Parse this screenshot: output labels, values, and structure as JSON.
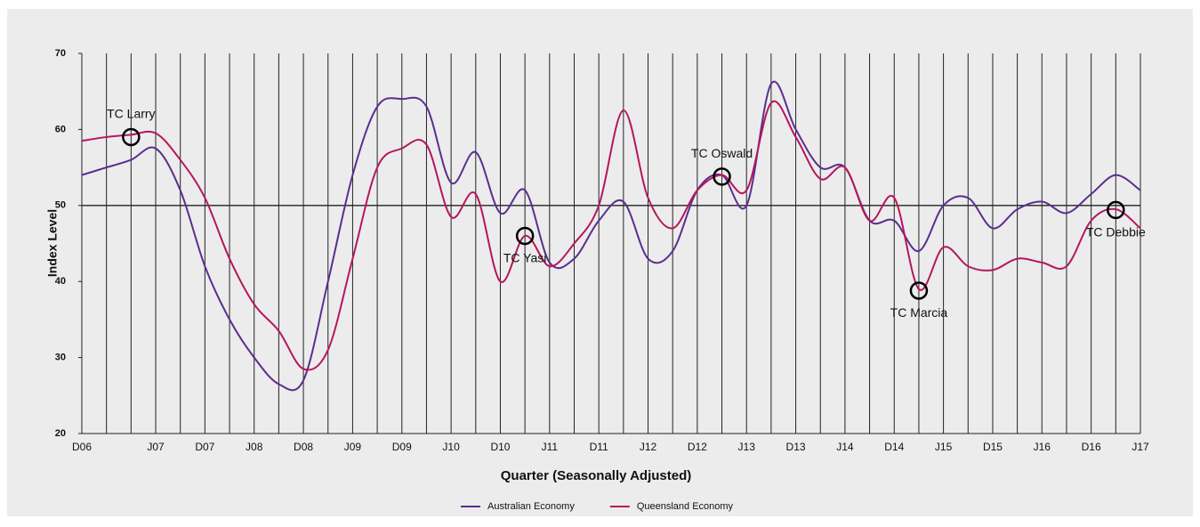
{
  "chart_data": {
    "type": "line",
    "x_label": "Quarter (Seasonally Adjusted)",
    "y_label": "Index Level",
    "categories": [
      "D06",
      null,
      null,
      "J07",
      null,
      "D07",
      null,
      "J08",
      null,
      "D08",
      null,
      "J09",
      null,
      "D09",
      null,
      "J10",
      null,
      "D10",
      null,
      "J11",
      null,
      "D11",
      null,
      "J12",
      null,
      "D12",
      null,
      "J13",
      null,
      "D13",
      null,
      "J14",
      null,
      "D14",
      null,
      "J15",
      null,
      "D15",
      null,
      "J16",
      null,
      "D16",
      null,
      "J17"
    ],
    "series": [
      {
        "name": "Australian Economy",
        "color": "#5b2d90",
        "values": [
          54,
          55,
          56,
          57.5,
          52,
          42,
          35,
          30,
          26.5,
          27,
          40,
          54,
          63,
          64,
          63,
          53,
          57,
          49,
          52,
          42.5,
          43,
          48,
          50.5,
          43,
          44,
          52,
          54,
          50,
          66,
          60,
          55,
          55,
          48,
          48,
          44,
          50,
          51,
          47,
          49.5,
          50.5,
          49,
          51.5,
          54,
          52
        ]
      },
      {
        "name": "Queensland Economy",
        "color": "#b5165f",
        "values": [
          58.5,
          59,
          59.3,
          59.5,
          56,
          51,
          43,
          37,
          33.5,
          28.5,
          31,
          43,
          55,
          57.5,
          58,
          48.5,
          51.5,
          40,
          46,
          42,
          45,
          50,
          62.5,
          51,
          47,
          52,
          54,
          52,
          63.5,
          59,
          53.5,
          55,
          48,
          51,
          39,
          44.5,
          42,
          41.5,
          43,
          42.5,
          42,
          48,
          49.5,
          47
        ]
      }
    ],
    "annotations": [
      {
        "text": "TC Larry",
        "at": 2,
        "value": 59,
        "position": "above"
      },
      {
        "text": "TC Yasi",
        "at": 18,
        "value": 46,
        "position": "below"
      },
      {
        "text": "TC Oswald",
        "at": 26,
        "value": 53.8,
        "position": "above"
      },
      {
        "text": "TC Marcia",
        "at": 34,
        "value": 38.8,
        "position": "below"
      },
      {
        "text": "TC Debbie",
        "at": 42,
        "value": 49.4,
        "position": "below"
      }
    ],
    "reference_line": 50,
    "ylim": [
      20,
      70
    ],
    "yticks": [
      20,
      30,
      40,
      50,
      60,
      70
    ],
    "grid": true,
    "legend": "bottom"
  }
}
